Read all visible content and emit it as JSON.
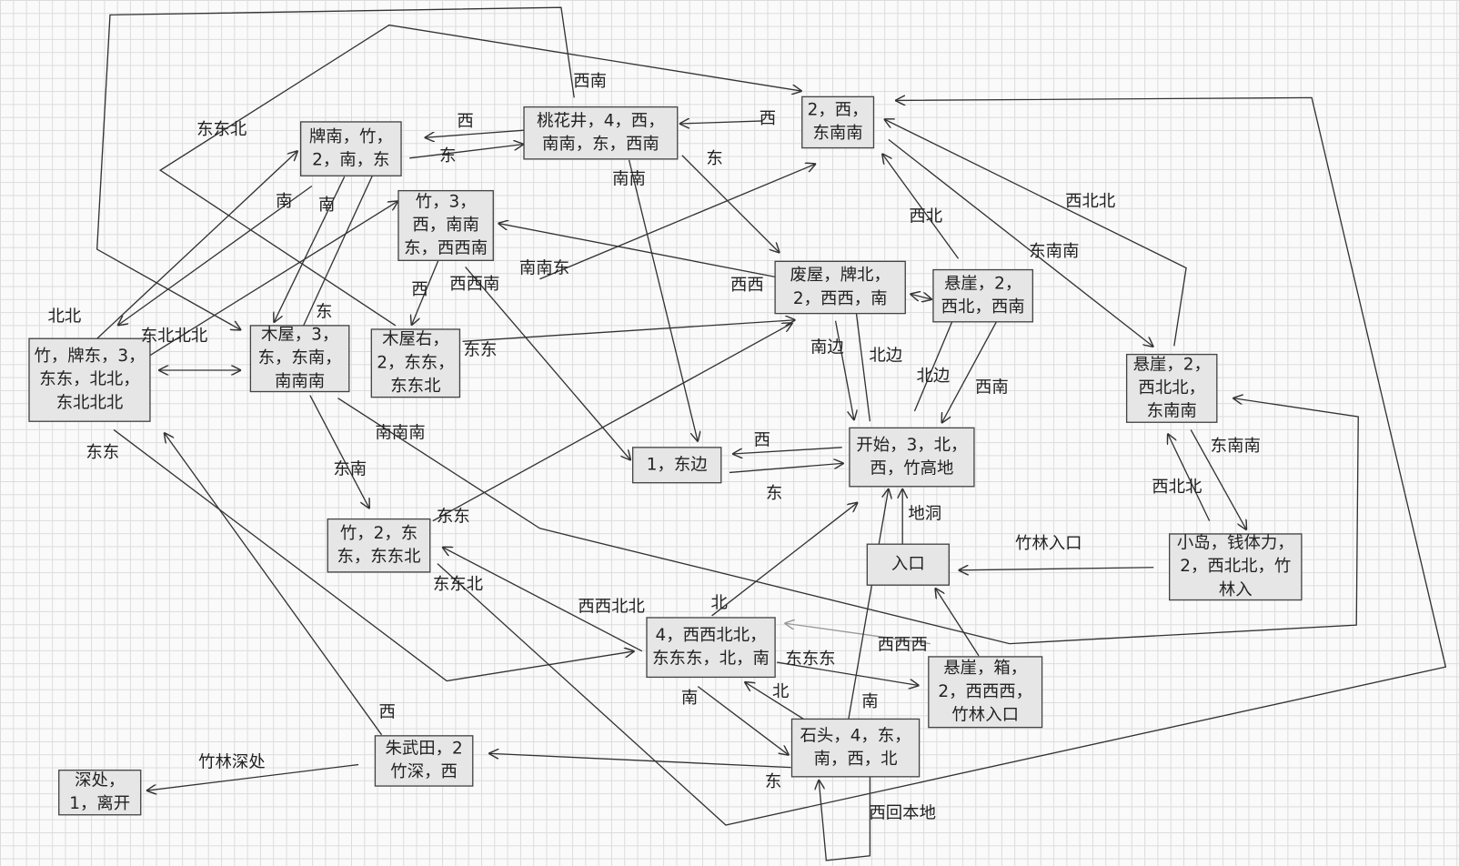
{
  "nodes": [
    {
      "lines": [
        "牌南，竹，",
        "2，南，东"
      ]
    },
    {
      "lines": [
        "桃花井，4，西，",
        "南南，东，西南"
      ]
    },
    {
      "lines": [
        "2，西，",
        "东南南"
      ]
    },
    {
      "lines": [
        "竹，3，",
        "西，南南",
        "东，西西南"
      ]
    },
    {
      "lines": [
        "废屋，牌北，",
        "2，西西，南"
      ]
    },
    {
      "lines": [
        "悬崖，2，",
        "西北，西南"
      ]
    },
    {
      "lines": [
        "竹，牌东，3，",
        "东东，北北，",
        "东北北北"
      ]
    },
    {
      "lines": [
        "木屋，3，",
        "东，东南，",
        "南南南"
      ]
    },
    {
      "lines": [
        "木屋右，",
        "2，东东，",
        "东东北"
      ]
    },
    {
      "lines": [
        "悬崖，2，",
        "西北北，",
        "东南南"
      ]
    },
    {
      "lines": [
        "1，东边"
      ]
    },
    {
      "lines": [
        "开始，3，北，",
        "西，竹高地"
      ]
    },
    {
      "lines": [
        "竹，2，东",
        "东，东东北"
      ]
    },
    {
      "lines": [
        "入口"
      ]
    },
    {
      "lines": [
        "小岛，钱体力，",
        "2，西北北，竹",
        "林入"
      ]
    },
    {
      "lines": [
        "4，西西北北，",
        "东东东，北，南"
      ]
    },
    {
      "lines": [
        "悬崖，箱，",
        "2，西西西，",
        "竹林入口"
      ]
    },
    {
      "lines": [
        "石头，4，东，",
        "南，西，北"
      ]
    },
    {
      "lines": [
        "朱武田，2",
        "竹深，西"
      ]
    },
    {
      "lines": [
        "深处，",
        "1，离开"
      ]
    }
  ],
  "edges": [
    {
      "label": "西南"
    },
    {
      "label": "东东北"
    },
    {
      "label": "西"
    },
    {
      "label": "东"
    },
    {
      "label": "西"
    },
    {
      "label": "东"
    },
    {
      "label": "南南"
    },
    {
      "label": "南"
    },
    {
      "label": "南"
    },
    {
      "label": "西北北"
    },
    {
      "label": "西北"
    },
    {
      "label": "东南南"
    },
    {
      "label": "南南东"
    },
    {
      "label": "西西南"
    },
    {
      "label": "西西"
    },
    {
      "label": "西"
    },
    {
      "label": "北北"
    },
    {
      "label": "东"
    },
    {
      "label": "东北北北"
    },
    {
      "label": "东东"
    },
    {
      "label": "南边"
    },
    {
      "label": "北边"
    },
    {
      "label": "北边"
    },
    {
      "label": "西南"
    },
    {
      "label": "南南南"
    },
    {
      "label": "东东"
    },
    {
      "label": "西"
    },
    {
      "label": "东南南"
    },
    {
      "label": "东南"
    },
    {
      "label": "东"
    },
    {
      "label": "西北北"
    },
    {
      "label": "地洞"
    },
    {
      "label": "东东"
    },
    {
      "label": "竹林入口"
    },
    {
      "label": "东东北"
    },
    {
      "label": "西西北北"
    },
    {
      "label": "北"
    },
    {
      "label": "西西西"
    },
    {
      "label": "东东东"
    },
    {
      "label": "北"
    },
    {
      "label": "南"
    },
    {
      "label": "南"
    },
    {
      "label": "西"
    },
    {
      "label": "竹林深处"
    },
    {
      "label": "东"
    },
    {
      "label": "西回本地"
    }
  ]
}
